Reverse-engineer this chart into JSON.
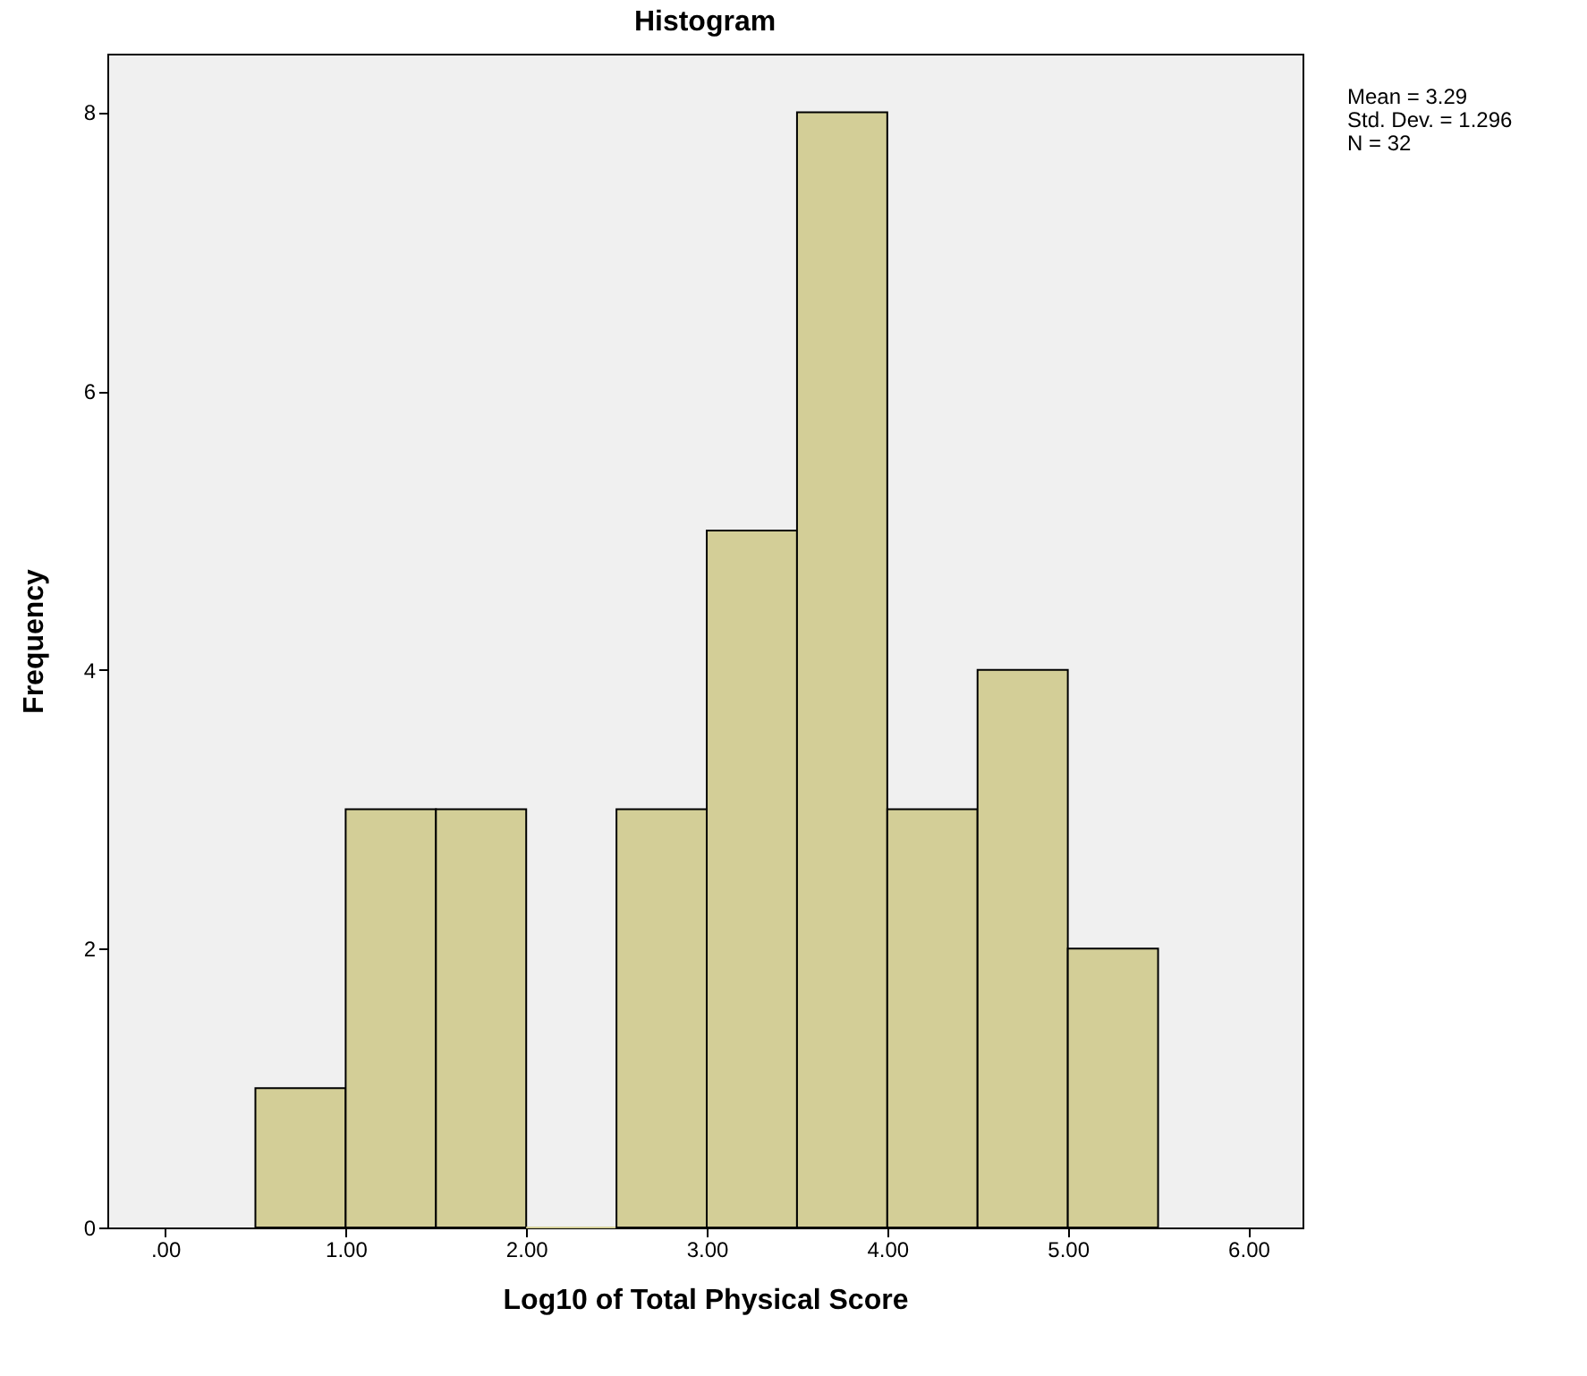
{
  "chart_data": {
    "type": "histogram",
    "title": "Histogram",
    "xlabel": "Log10 of Total Physical Score",
    "ylabel": "Frequency",
    "bins": [
      0.5,
      1.0,
      1.5,
      2.0,
      2.5,
      3.0,
      3.5,
      4.0,
      4.5,
      5.0,
      5.5
    ],
    "values": [
      1,
      3,
      3,
      0,
      3,
      5,
      8,
      3,
      4,
      2
    ],
    "color": "#d3ce97",
    "xlim": [
      -0.32,
      6.3
    ],
    "xticks": [
      {
        "value": 0,
        "label": ".00"
      },
      {
        "value": 1,
        "label": "1.00"
      },
      {
        "value": 2,
        "label": "2.00"
      },
      {
        "value": 3,
        "label": "3.00"
      },
      {
        "value": 4,
        "label": "4.00"
      },
      {
        "value": 5,
        "label": "5.00"
      },
      {
        "value": 6,
        "label": "6.00"
      }
    ],
    "ylim": [
      0,
      8.42
    ],
    "yticks": [
      0,
      2,
      4,
      6,
      8
    ],
    "grid": false,
    "annotations": [
      "Mean = 3.29",
      "Std. Dev. = 1.296",
      "N = 32"
    ]
  }
}
